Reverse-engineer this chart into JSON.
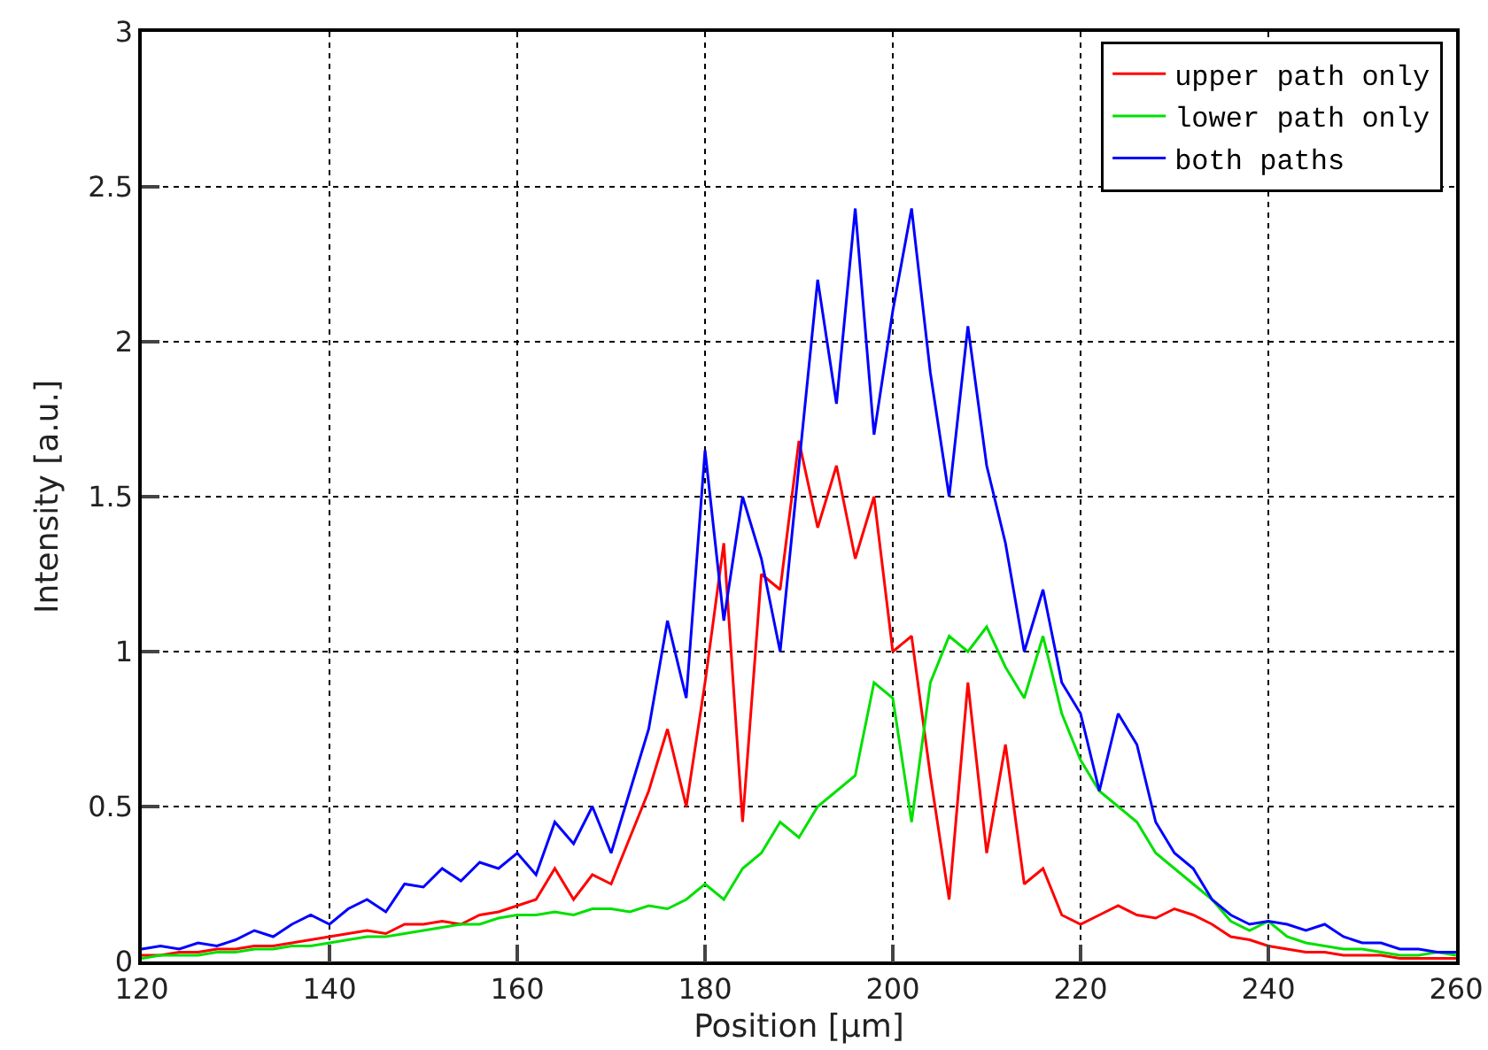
{
  "chart_data": {
    "type": "line",
    "xlabel": "Position [µm]",
    "ylabel": "Intensity [a.u.]",
    "x": [
      120,
      122,
      124,
      126,
      128,
      130,
      132,
      134,
      136,
      138,
      140,
      142,
      144,
      146,
      148,
      150,
      152,
      154,
      156,
      158,
      160,
      162,
      164,
      166,
      168,
      170,
      172,
      174,
      176,
      178,
      180,
      182,
      184,
      186,
      188,
      190,
      192,
      194,
      196,
      198,
      200,
      202,
      204,
      206,
      208,
      210,
      212,
      214,
      216,
      218,
      220,
      222,
      224,
      226,
      228,
      230,
      232,
      234,
      236,
      238,
      240,
      242,
      244,
      246,
      248,
      250,
      252,
      254,
      256,
      258,
      260
    ],
    "series": [
      {
        "name": "upper path only",
        "color": "#ff0000",
        "values": [
          0.02,
          0.02,
          0.03,
          0.03,
          0.04,
          0.04,
          0.05,
          0.05,
          0.06,
          0.07,
          0.08,
          0.09,
          0.1,
          0.09,
          0.12,
          0.12,
          0.13,
          0.12,
          0.15,
          0.16,
          0.18,
          0.2,
          0.3,
          0.2,
          0.28,
          0.25,
          0.4,
          0.55,
          0.75,
          0.5,
          0.9,
          1.35,
          0.45,
          1.25,
          1.2,
          1.68,
          1.4,
          1.6,
          1.3,
          1.5,
          1.0,
          1.05,
          0.6,
          0.2,
          0.9,
          0.35,
          0.7,
          0.25,
          0.3,
          0.15,
          0.12,
          0.15,
          0.18,
          0.15,
          0.14,
          0.17,
          0.15,
          0.12,
          0.08,
          0.07,
          0.05,
          0.04,
          0.03,
          0.03,
          0.02,
          0.02,
          0.02,
          0.01,
          0.01,
          0.01,
          0.01
        ]
      },
      {
        "name": "lower path only",
        "color": "#00e000",
        "values": [
          0.01,
          0.02,
          0.02,
          0.02,
          0.03,
          0.03,
          0.04,
          0.04,
          0.05,
          0.05,
          0.06,
          0.07,
          0.08,
          0.08,
          0.09,
          0.1,
          0.11,
          0.12,
          0.12,
          0.14,
          0.15,
          0.15,
          0.16,
          0.15,
          0.17,
          0.17,
          0.16,
          0.18,
          0.17,
          0.2,
          0.25,
          0.2,
          0.3,
          0.35,
          0.45,
          0.4,
          0.5,
          0.55,
          0.6,
          0.9,
          0.85,
          0.45,
          0.9,
          1.05,
          1.0,
          1.08,
          0.95,
          0.85,
          1.05,
          0.8,
          0.65,
          0.55,
          0.5,
          0.45,
          0.35,
          0.3,
          0.25,
          0.2,
          0.13,
          0.1,
          0.13,
          0.08,
          0.06,
          0.05,
          0.04,
          0.04,
          0.03,
          0.02,
          0.02,
          0.03,
          0.02
        ]
      },
      {
        "name": "both paths",
        "color": "#0000ff",
        "values": [
          0.04,
          0.05,
          0.04,
          0.06,
          0.05,
          0.07,
          0.1,
          0.08,
          0.12,
          0.15,
          0.12,
          0.17,
          0.2,
          0.16,
          0.25,
          0.24,
          0.3,
          0.26,
          0.32,
          0.3,
          0.35,
          0.28,
          0.45,
          0.38,
          0.5,
          0.35,
          0.55,
          0.75,
          1.1,
          0.85,
          1.65,
          1.1,
          1.5,
          1.3,
          1.0,
          1.6,
          2.2,
          1.8,
          2.43,
          1.7,
          2.1,
          2.43,
          1.9,
          1.5,
          2.05,
          1.6,
          1.35,
          1.0,
          1.2,
          0.9,
          0.8,
          0.55,
          0.8,
          0.7,
          0.45,
          0.35,
          0.3,
          0.2,
          0.15,
          0.12,
          0.13,
          0.12,
          0.1,
          0.12,
          0.08,
          0.06,
          0.06,
          0.04,
          0.04,
          0.03,
          0.03
        ]
      }
    ],
    "xlim": [
      120,
      260
    ],
    "xticks": [
      120,
      140,
      160,
      180,
      200,
      220,
      240,
      260
    ],
    "ylim": [
      0,
      3
    ],
    "yticks": [
      0,
      0.5,
      1,
      1.5,
      2,
      2.5,
      3
    ],
    "grid": true,
    "legend": "top right",
    "marker": "none",
    "line_style": "solid"
  }
}
